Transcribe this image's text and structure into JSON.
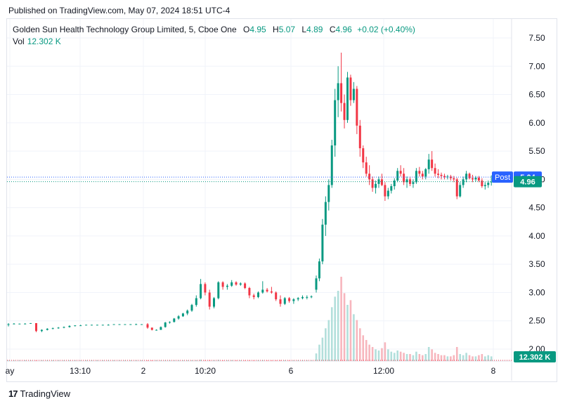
{
  "header": {
    "published": "Published on TradingView.com, May 07, 2024 18:51 UTC-4"
  },
  "legend": {
    "symbol": "Golden Sun Health Technology Group Limited, 5, Cboe One",
    "open_label": "O",
    "open": "4.95",
    "high_label": "H",
    "high": "5.07",
    "low_label": "L",
    "low": "4.89",
    "close_label": "C",
    "close": "4.96",
    "change": "+0.02 (+0.40%)",
    "vol_label": "Vol",
    "vol": "12.302 K"
  },
  "footer": {
    "brand": "TradingView"
  },
  "colors": {
    "up": "#089981",
    "down": "#f23645",
    "vol_up": "#b2dfdb",
    "vol_down": "#f7b6bd",
    "accent": "#2962ff"
  },
  "chart_data": {
    "type": "candlestick",
    "y_axis": {
      "ticks": [
        "7.50",
        "7.00",
        "6.50",
        "6.00",
        "5.50",
        "5.00",
        "4.50",
        "4.00",
        "3.50",
        "3.00",
        "2.50",
        "2.00"
      ],
      "range": [
        1.95,
        7.62
      ]
    },
    "x_axis": {
      "ticks": [
        "ay",
        "13:10",
        "2",
        "10:20",
        "6",
        "12:00",
        "8"
      ]
    },
    "price_labels": {
      "post_label": "Post",
      "post": "5.04",
      "last": "4.96",
      "volume": "12.302 K"
    },
    "ohlc": [
      [
        2.43,
        2.46,
        2.4,
        2.44
      ],
      [
        2.44,
        2.46,
        2.44,
        2.45
      ],
      [
        2.45,
        2.45,
        2.44,
        2.45
      ],
      [
        2.45,
        2.46,
        2.45,
        2.45
      ],
      [
        2.45,
        2.46,
        2.45,
        2.46
      ],
      [
        2.46,
        2.46,
        2.3,
        2.32
      ],
      [
        2.32,
        2.35,
        2.3,
        2.34
      ],
      [
        2.34,
        2.37,
        2.33,
        2.36
      ],
      [
        2.36,
        2.38,
        2.35,
        2.37
      ],
      [
        2.37,
        2.39,
        2.36,
        2.38
      ],
      [
        2.38,
        2.4,
        2.37,
        2.39
      ],
      [
        2.39,
        2.42,
        2.38,
        2.41
      ],
      [
        2.41,
        2.42,
        2.4,
        2.42
      ],
      [
        2.42,
        2.43,
        2.41,
        2.42
      ],
      [
        2.42,
        2.43,
        2.42,
        2.43
      ],
      [
        2.43,
        2.43,
        2.42,
        2.43
      ],
      [
        2.43,
        2.43,
        2.42,
        2.43
      ],
      [
        2.43,
        2.43,
        2.42,
        2.43
      ],
      [
        2.43,
        2.44,
        2.42,
        2.43
      ],
      [
        2.43,
        2.44,
        2.43,
        2.44
      ],
      [
        2.44,
        2.44,
        2.43,
        2.44
      ],
      [
        2.44,
        2.44,
        2.43,
        2.44
      ],
      [
        2.44,
        2.44,
        2.43,
        2.44
      ],
      [
        2.44,
        2.45,
        2.43,
        2.44
      ],
      [
        2.44,
        2.44,
        2.43,
        2.44
      ],
      [
        2.44,
        2.46,
        2.36,
        2.38
      ],
      [
        2.38,
        2.38,
        2.33,
        2.34
      ],
      [
        2.34,
        2.35,
        2.33,
        2.34
      ],
      [
        2.34,
        2.4,
        2.34,
        2.39
      ],
      [
        2.39,
        2.48,
        2.38,
        2.47
      ],
      [
        2.47,
        2.49,
        2.45,
        2.48
      ],
      [
        2.48,
        2.55,
        2.47,
        2.54
      ],
      [
        2.54,
        2.6,
        2.52,
        2.58
      ],
      [
        2.58,
        2.64,
        2.57,
        2.63
      ],
      [
        2.63,
        2.7,
        2.6,
        2.68
      ],
      [
        2.68,
        2.8,
        2.66,
        2.78
      ],
      [
        2.78,
        2.95,
        2.75,
        2.9
      ],
      [
        2.9,
        3.24,
        2.88,
        3.15
      ],
      [
        3.15,
        3.18,
        2.95,
        3.0
      ],
      [
        3.0,
        3.05,
        2.7,
        2.75
      ],
      [
        2.75,
        2.92,
        2.72,
        2.9
      ],
      [
        2.9,
        3.2,
        2.88,
        3.18
      ],
      [
        3.18,
        3.2,
        3.05,
        3.1
      ],
      [
        3.1,
        3.15,
        3.05,
        3.12
      ],
      [
        3.12,
        3.22,
        3.1,
        3.18
      ],
      [
        3.18,
        3.2,
        3.12,
        3.14
      ],
      [
        3.14,
        3.18,
        3.12,
        3.16
      ],
      [
        3.16,
        3.18,
        3.06,
        3.08
      ],
      [
        3.08,
        3.1,
        2.9,
        2.95
      ],
      [
        2.95,
        2.98,
        2.88,
        2.92
      ],
      [
        2.92,
        3.02,
        2.9,
        3.0
      ],
      [
        3.0,
        3.2,
        2.98,
        3.05
      ],
      [
        3.05,
        3.08,
        3.0,
        3.02
      ],
      [
        3.02,
        3.1,
        2.98,
        3.0
      ],
      [
        3.0,
        3.02,
        2.85,
        2.88
      ],
      [
        2.88,
        2.95,
        2.75,
        2.8
      ],
      [
        2.8,
        2.92,
        2.78,
        2.9
      ],
      [
        2.9,
        2.92,
        2.82,
        2.85
      ],
      [
        2.85,
        2.9,
        2.8,
        2.88
      ],
      [
        2.88,
        2.92,
        2.85,
        2.9
      ],
      [
        2.9,
        2.95,
        2.88,
        2.92
      ],
      [
        2.92,
        2.95,
        2.88,
        2.92
      ],
      [
        2.92,
        2.95,
        2.9,
        2.93
      ],
      [
        3.05,
        3.3,
        3.0,
        3.25
      ],
      [
        3.25,
        3.6,
        3.2,
        3.55
      ],
      [
        3.55,
        4.3,
        3.5,
        4.2
      ],
      [
        4.2,
        4.7,
        4.0,
        4.6
      ],
      [
        4.6,
        5.0,
        4.45,
        4.9
      ],
      [
        4.9,
        5.7,
        4.85,
        5.6
      ],
      [
        5.6,
        6.6,
        5.4,
        6.4
      ],
      [
        6.4,
        7.0,
        6.1,
        6.7
      ],
      [
        6.7,
        7.24,
        6.2,
        6.35
      ],
      [
        6.35,
        6.5,
        5.9,
        6.05
      ],
      [
        6.05,
        6.9,
        6.0,
        6.8
      ],
      [
        6.8,
        6.85,
        6.3,
        6.4
      ],
      [
        6.4,
        6.72,
        6.35,
        6.6
      ],
      [
        6.6,
        6.65,
        5.8,
        5.95
      ],
      [
        5.95,
        6.05,
        5.4,
        5.55
      ],
      [
        5.55,
        5.6,
        5.2,
        5.3
      ],
      [
        5.3,
        5.4,
        5.05,
        5.1
      ],
      [
        5.1,
        5.25,
        4.9,
        5.0
      ],
      [
        5.0,
        5.05,
        4.78,
        4.85
      ],
      [
        4.85,
        4.98,
        4.75,
        4.92
      ],
      [
        4.92,
        5.05,
        4.85,
        5.0
      ],
      [
        5.0,
        5.1,
        4.88,
        4.9
      ],
      [
        4.9,
        4.95,
        4.62,
        4.7
      ],
      [
        4.7,
        4.85,
        4.65,
        4.8
      ],
      [
        4.8,
        4.92,
        4.75,
        4.88
      ],
      [
        4.88,
        5.02,
        4.82,
        4.98
      ],
      [
        4.98,
        5.2,
        4.95,
        5.15
      ],
      [
        5.15,
        5.25,
        5.05,
        5.1
      ],
      [
        5.1,
        5.2,
        4.9,
        4.95
      ],
      [
        4.95,
        5.05,
        4.85,
        5.0
      ],
      [
        5.0,
        5.05,
        4.88,
        4.92
      ],
      [
        4.92,
        5.0,
        4.85,
        4.95
      ],
      [
        4.95,
        5.2,
        4.92,
        5.15
      ],
      [
        5.15,
        5.22,
        5.05,
        5.1
      ],
      [
        5.1,
        5.15,
        5.0,
        5.05
      ],
      [
        5.05,
        5.2,
        5.0,
        5.18
      ],
      [
        5.18,
        5.45,
        5.1,
        5.35
      ],
      [
        5.35,
        5.5,
        5.15,
        5.2
      ],
      [
        5.2,
        5.28,
        5.05,
        5.1
      ],
      [
        5.1,
        5.18,
        5.02,
        5.08
      ],
      [
        5.08,
        5.12,
        5.0,
        5.06
      ],
      [
        5.06,
        5.1,
        5.0,
        5.04
      ],
      [
        5.04,
        5.08,
        5.0,
        5.05
      ],
      [
        5.05,
        5.08,
        4.98,
        5.02
      ],
      [
        5.02,
        5.06,
        4.95,
        5.0
      ],
      [
        5.0,
        5.03,
        4.65,
        4.7
      ],
      [
        4.7,
        4.95,
        4.68,
        4.9
      ],
      [
        4.9,
        5.05,
        4.85,
        5.0
      ],
      [
        5.0,
        5.15,
        4.95,
        5.1
      ],
      [
        5.1,
        5.12,
        5.0,
        5.02
      ],
      [
        5.02,
        5.08,
        4.95,
        5.0
      ],
      [
        5.0,
        5.06,
        4.96,
        5.03
      ],
      [
        5.03,
        5.06,
        4.95,
        4.98
      ],
      [
        4.98,
        5.02,
        4.85,
        4.88
      ],
      [
        4.88,
        4.95,
        4.82,
        4.9
      ],
      [
        4.9,
        4.98,
        4.85,
        4.94
      ],
      [
        4.95,
        5.07,
        4.89,
        4.96
      ]
    ],
    "volume": [
      0.3,
      0.2,
      0.1,
      0.1,
      0.1,
      0.4,
      0.2,
      0.2,
      0.1,
      0.1,
      0.1,
      0.1,
      0.1,
      0.1,
      0.1,
      0.1,
      0.1,
      0.1,
      0.1,
      0.1,
      0.1,
      0.1,
      0.1,
      0.1,
      0.1,
      0.6,
      0.3,
      0.2,
      0.3,
      0.4,
      0.3,
      0.3,
      0.3,
      0.3,
      0.4,
      0.5,
      0.6,
      1.2,
      0.8,
      0.9,
      0.7,
      1.0,
      0.6,
      0.6,
      0.7,
      0.5,
      0.5,
      0.6,
      0.7,
      0.5,
      0.6,
      0.8,
      0.5,
      0.5,
      0.6,
      0.8,
      0.6,
      0.5,
      0.5,
      0.5,
      0.5,
      0.5,
      0.5,
      6.5,
      14.0,
      20.0,
      28.0,
      35.0,
      46.0,
      55.0,
      60.0,
      72.0,
      58.0,
      48.0,
      52.0,
      40.0,
      35.0,
      28.0,
      22.0,
      18.0,
      14.0,
      12.0,
      10.0,
      9.0,
      11.0,
      16.0,
      10.0,
      8.0,
      7.0,
      9.0,
      8.0,
      7.0,
      6.0,
      6.0,
      5.0,
      8.0,
      6.0,
      5.0,
      6.0,
      12.0,
      10.0,
      7.0,
      6.0,
      5.0,
      5.0,
      4.0,
      4.0,
      5.0,
      12.0,
      6.0,
      5.0,
      7.0,
      5.0,
      4.0,
      4.0,
      5.0,
      6.0,
      4.0,
      5.0,
      4.0
    ]
  }
}
